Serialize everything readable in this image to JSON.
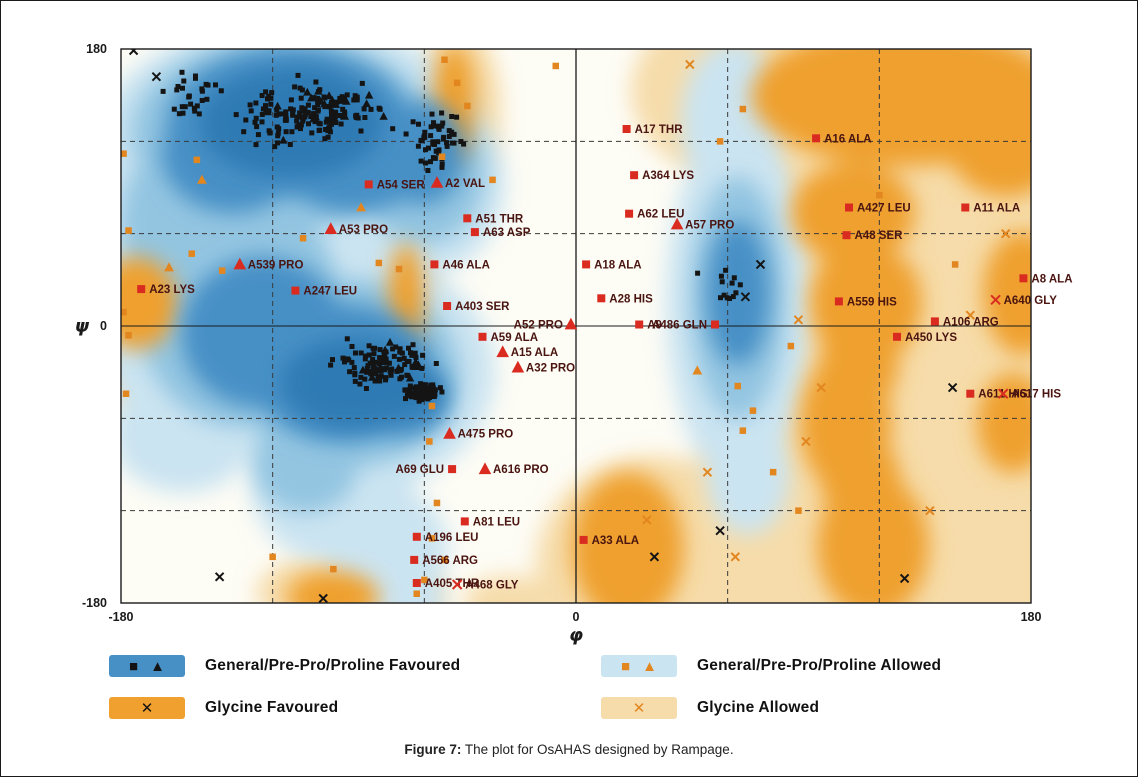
{
  "figure": {
    "caption_label": "Figure 7:",
    "caption_text": " The plot for OsAHAS designed by Rampage."
  },
  "icons": {
    "square": "■",
    "triangle": "▲",
    "cross": "✕"
  },
  "legend": {
    "items": [
      {
        "label": "General/Pre-Pro/Proline Favoured",
        "markers": [
          "black-square",
          "black-triangle"
        ]
      },
      {
        "label": "General/Pre-Pro/Proline Allowed",
        "markers": [
          "orange-square",
          "orange-triangle"
        ]
      },
      {
        "label": "Glycine Favoured",
        "markers": [
          "black-x"
        ]
      },
      {
        "label": "Glycine Allowed",
        "markers": [
          "orange-x"
        ]
      }
    ]
  },
  "colors": {
    "base": "#fdfcf5",
    "general_favoured": "#4690c6",
    "general_favoured_core": "#2e7ab4",
    "general_allowed": "#cbe4f1",
    "general_allowed_mid": "#93c5e1",
    "glycine_favoured": "#efa02f",
    "glycine_allowed": "#f6dcaa",
    "favoured_marker": "#141414",
    "allowed_marker": "#e2861f",
    "outlier_marker": "#d92b20",
    "outlier_label": "#4a1410",
    "grid": "#3a3a3a",
    "axis": "#1a1a1a"
  },
  "chart_data": {
    "type": "scatter",
    "title": "",
    "xlabel": "φ",
    "ylabel": "ψ",
    "xlim": [
      -180,
      180
    ],
    "ylim": [
      -180,
      180
    ],
    "x_ticks": [
      {
        "v": -180,
        "label": "-180"
      },
      {
        "v": 0,
        "label": "0"
      },
      {
        "v": 180,
        "label": "180"
      }
    ],
    "y_ticks": [
      {
        "v": 180,
        "label": "180"
      },
      {
        "v": 0,
        "label": "0"
      },
      {
        "v": -180,
        "label": "-180"
      }
    ],
    "grid_lines_dashed": [
      -120,
      -60,
      60,
      120
    ],
    "grid_lines_solid": [
      0
    ],
    "labeled_outliers": [
      {
        "name": "A17 THR",
        "phi": 20,
        "psi": 128,
        "marker": "square"
      },
      {
        "name": "A16 ALA",
        "phi": 95,
        "psi": 122,
        "marker": "square"
      },
      {
        "name": "A364 LYS",
        "phi": 23,
        "psi": 98,
        "marker": "square"
      },
      {
        "name": "A54 SER",
        "phi": -82,
        "psi": 92,
        "marker": "square"
      },
      {
        "name": "A2 VAL",
        "phi": -55,
        "psi": 93,
        "marker": "triangle"
      },
      {
        "name": "A62 LEU",
        "phi": 21,
        "psi": 73,
        "marker": "square"
      },
      {
        "name": "A57 PRO",
        "phi": 40,
        "psi": 66,
        "marker": "triangle"
      },
      {
        "name": "A427 LEU",
        "phi": 108,
        "psi": 77,
        "marker": "square"
      },
      {
        "name": "A11 ALA",
        "phi": 154,
        "psi": 77,
        "marker": "square"
      },
      {
        "name": "A51 THR",
        "phi": -43,
        "psi": 70,
        "marker": "square"
      },
      {
        "name": "A63 ASP",
        "phi": -40,
        "psi": 61,
        "marker": "square"
      },
      {
        "name": "A48 SER",
        "phi": 107,
        "psi": 59,
        "marker": "square"
      },
      {
        "name": "A53 PRO",
        "phi": -97,
        "psi": 63,
        "marker": "triangle"
      },
      {
        "name": "A539 PRO",
        "phi": -133,
        "psi": 40,
        "marker": "triangle"
      },
      {
        "name": "A46 ALA",
        "phi": -56,
        "psi": 40,
        "marker": "square"
      },
      {
        "name": "A18 ALA",
        "phi": 4,
        "psi": 40,
        "marker": "square"
      },
      {
        "name": "A23 LYS",
        "phi": -172,
        "psi": 24,
        "marker": "square"
      },
      {
        "name": "A247 LEU",
        "phi": -111,
        "psi": 23,
        "marker": "square"
      },
      {
        "name": "A8 ALA",
        "phi": 177,
        "psi": 31,
        "marker": "square"
      },
      {
        "name": "A640 GLY",
        "phi": 166,
        "psi": 17,
        "marker": "cross"
      },
      {
        "name": "A28 HIS",
        "phi": 10,
        "psi": 18,
        "marker": "square"
      },
      {
        "name": "A559 HIS",
        "phi": 104,
        "psi": 16,
        "marker": "square"
      },
      {
        "name": "A403 SER",
        "phi": -51,
        "psi": 13,
        "marker": "square"
      },
      {
        "name": "A106 ARG",
        "phi": 142,
        "psi": 3,
        "marker": "square"
      },
      {
        "name": "A52 PRO",
        "phi": -2,
        "psi": 1,
        "marker": "triangle",
        "side": "left"
      },
      {
        "name": "A9",
        "phi": 25,
        "psi": 1,
        "marker": "square"
      },
      {
        "name": "A486 GLN",
        "phi": 55,
        "psi": 1,
        "marker": "square",
        "side": "left"
      },
      {
        "name": "A450 LYS",
        "phi": 127,
        "psi": -7,
        "marker": "square"
      },
      {
        "name": "A59 ALA",
        "phi": -37,
        "psi": -7,
        "marker": "square"
      },
      {
        "name": "A15 ALA",
        "phi": -29,
        "psi": -17,
        "marker": "triangle"
      },
      {
        "name": "A32 PRO",
        "phi": -23,
        "psi": -27,
        "marker": "triangle"
      },
      {
        "name": "A611 HIS",
        "phi": 156,
        "psi": -44,
        "marker": "square"
      },
      {
        "name": "A617 HIS",
        "phi": 169,
        "psi": -44,
        "marker": "cross"
      },
      {
        "name": "A475 PRO",
        "phi": -50,
        "psi": -70,
        "marker": "triangle"
      },
      {
        "name": "A69 GLU",
        "phi": -49,
        "psi": -93,
        "marker": "square",
        "side": "left"
      },
      {
        "name": "A616 PRO",
        "phi": -36,
        "psi": -93,
        "marker": "triangle"
      },
      {
        "name": "A81 LEU",
        "phi": -44,
        "psi": -127,
        "marker": "square"
      },
      {
        "name": "A196 LEU",
        "phi": -63,
        "psi": -137,
        "marker": "square"
      },
      {
        "name": "A566 ARG",
        "phi": -64,
        "psi": -152,
        "marker": "square"
      },
      {
        "name": "A33 ALA",
        "phi": 3,
        "psi": -139,
        "marker": "square"
      },
      {
        "name": "A405 THR",
        "phi": -63,
        "psi": -167,
        "marker": "square"
      },
      {
        "name": "A468 GLY",
        "phi": -47,
        "psi": -168,
        "marker": "cross"
      }
    ],
    "point_clusters": [
      {
        "shape": "square",
        "count": 150,
        "cx": -105,
        "cy": 138,
        "sx": 38,
        "sy": 26
      },
      {
        "shape": "square",
        "count": 55,
        "cx": -55,
        "cy": 122,
        "sx": 14,
        "sy": 28
      },
      {
        "shape": "square",
        "count": 28,
        "cx": -150,
        "cy": 148,
        "sx": 16,
        "sy": 22
      },
      {
        "shape": "triangle",
        "count": 22,
        "cx": -98,
        "cy": 142,
        "sx": 36,
        "sy": 24
      },
      {
        "shape": "square",
        "count": 110,
        "cx": -76,
        "cy": -24,
        "sx": 26,
        "sy": 20
      },
      {
        "shape": "square",
        "count": 85,
        "cx": -61,
        "cy": -43,
        "sx": 9,
        "sy": 8
      },
      {
        "shape": "triangle",
        "count": 10,
        "cx": -72,
        "cy": -22,
        "sx": 20,
        "sy": 16
      },
      {
        "shape": "square",
        "count": 13,
        "cx": 57,
        "cy": 28,
        "sx": 11,
        "sy": 16
      }
    ],
    "glycine_favoured_points": [
      [
        -175,
        179
      ],
      [
        -166,
        162
      ],
      [
        -141,
        -163
      ],
      [
        31,
        -150
      ],
      [
        130,
        -164
      ],
      [
        67,
        19
      ],
      [
        73,
        40
      ],
      [
        57,
        -133
      ],
      [
        149,
        -40
      ],
      [
        -100,
        -177
      ]
    ],
    "allowed_square_points": [
      [
        -179,
        112
      ],
      [
        -177,
        62
      ],
      [
        -179,
        9
      ],
      [
        -177,
        -6
      ],
      [
        -178,
        -44
      ],
      [
        -152,
        47
      ],
      [
        -140,
        36
      ],
      [
        -150,
        108
      ],
      [
        -108,
        57
      ],
      [
        -78,
        41
      ],
      [
        -70,
        37
      ],
      [
        -52,
        173
      ],
      [
        -47,
        158
      ],
      [
        -43,
        143
      ],
      [
        -8,
        169
      ],
      [
        -53,
        110
      ],
      [
        -57,
        -52
      ],
      [
        -58,
        -75
      ],
      [
        -55,
        -115
      ],
      [
        -57,
        -138
      ],
      [
        -52,
        -152
      ],
      [
        -60,
        -165
      ],
      [
        -63,
        -174
      ],
      [
        -96,
        -158
      ],
      [
        -120,
        -150
      ],
      [
        85,
        -13
      ],
      [
        64,
        -39
      ],
      [
        70,
        -55
      ],
      [
        66,
        -68
      ],
      [
        78,
        -95
      ],
      [
        88,
        -120
      ],
      [
        66,
        141
      ],
      [
        57,
        120
      ],
      [
        150,
        40
      ],
      [
        120,
        85
      ],
      [
        -33,
        95
      ]
    ],
    "allowed_triangle_points": [
      [
        -161,
        38
      ],
      [
        -85,
        77
      ],
      [
        48,
        -29
      ],
      [
        -148,
        95
      ]
    ],
    "glycine_allowed_points": [
      [
        88,
        4
      ],
      [
        156,
        7
      ],
      [
        91,
        -75
      ],
      [
        28,
        -126
      ],
      [
        63,
        -150
      ],
      [
        140,
        -120
      ],
      [
        45,
        170
      ],
      [
        170,
        60
      ],
      [
        97,
        -40
      ],
      [
        52,
        -95
      ]
    ]
  }
}
